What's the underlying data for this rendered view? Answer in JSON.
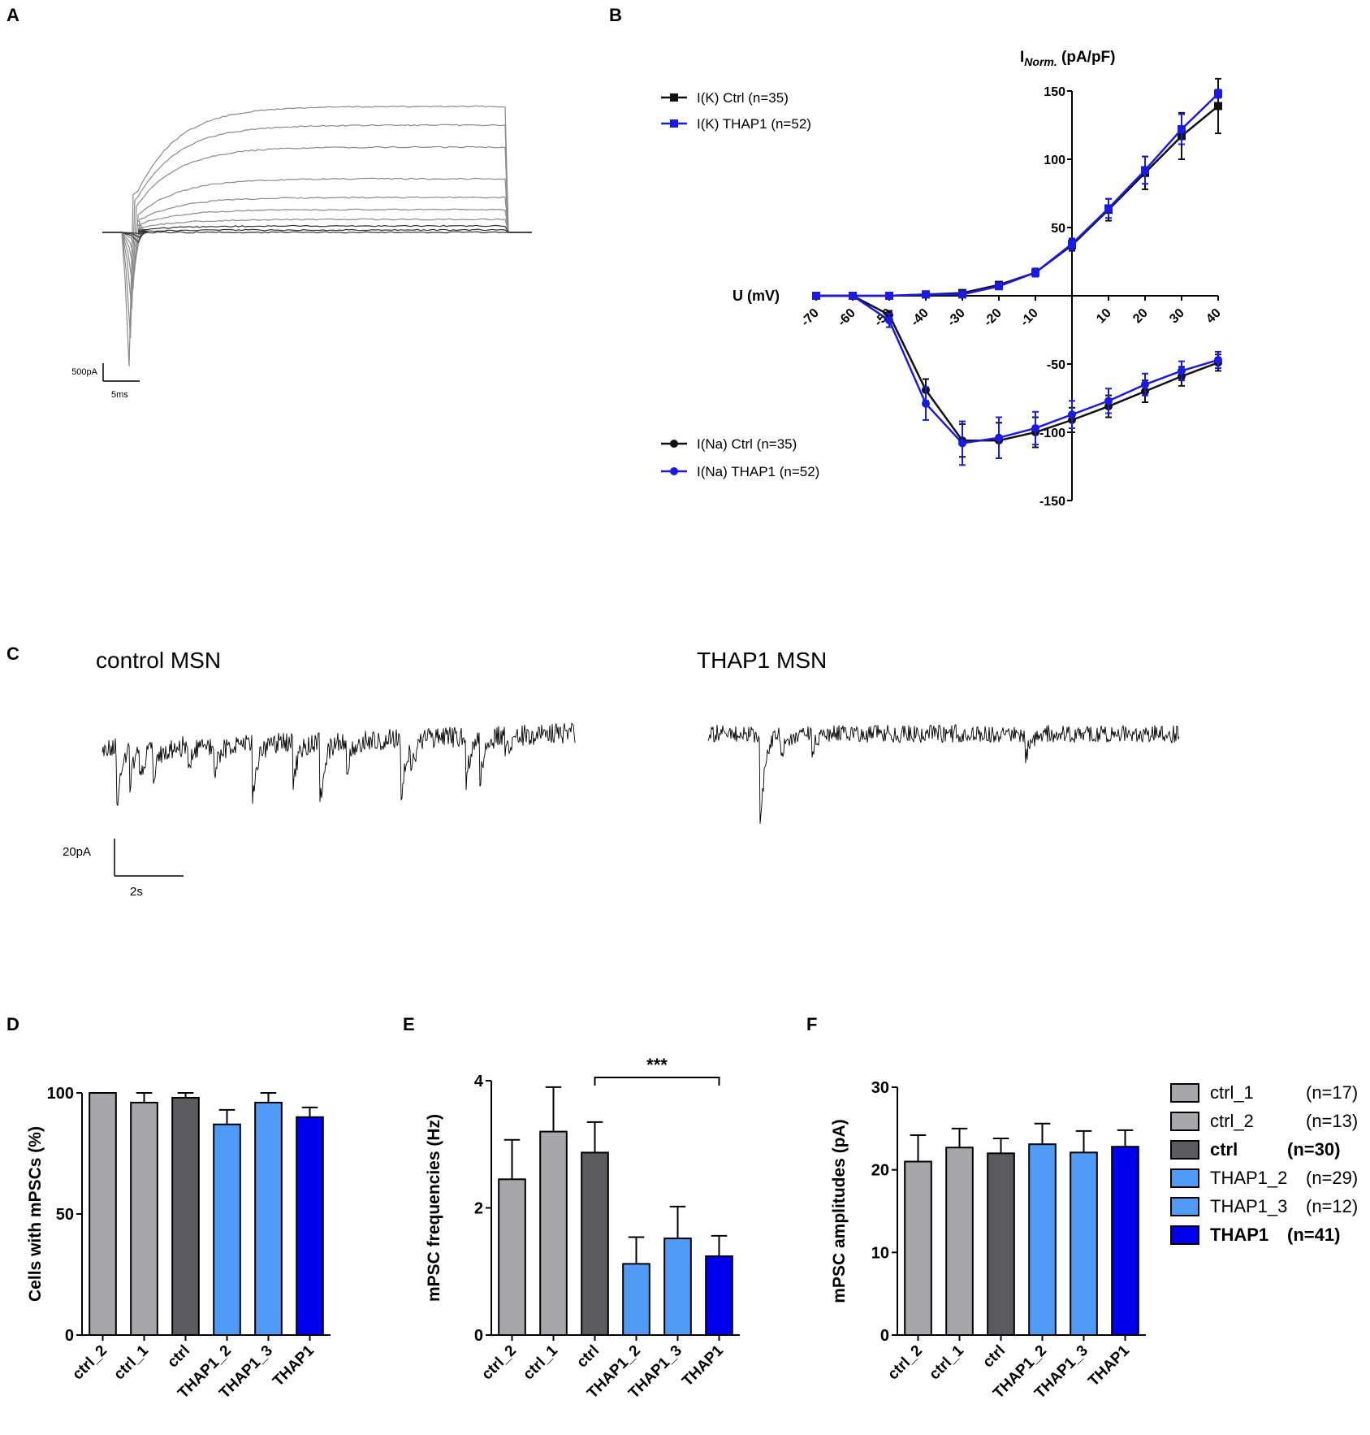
{
  "panels": {
    "A": {
      "label": "A",
      "scale_current": "500pA",
      "scale_time": "5ms"
    },
    "B": {
      "label": "B",
      "y_label_main": "I",
      "y_label_sub": "Norm.",
      "y_label_unit": " (pA/pF)",
      "x_label": "U (mV)"
    },
    "C": {
      "label": "C",
      "left_title": "control MSN",
      "right_title": "THAP1 MSN",
      "scale_current": "20pA",
      "scale_time": "2s"
    },
    "D": {
      "label": "D"
    },
    "E": {
      "label": "E",
      "significance": "***"
    },
    "F": {
      "label": "F"
    }
  },
  "colors": {
    "ctrl_light": "#a6a6ab",
    "ctrl_dark": "#5b5b5f",
    "thap_light": "#4f9bf5",
    "thap_dark": "#0000ee",
    "line_black": "#111111",
    "line_blue": "#1a1ae6"
  },
  "legend_F": [
    {
      "name": "ctrl_1",
      "n": "(n=17)",
      "bold": false,
      "color": "#a6a6ab"
    },
    {
      "name": "ctrl_2",
      "n": "(n=13)",
      "bold": false,
      "color": "#a6a6ab"
    },
    {
      "name": "ctrl",
      "n": "(n=30)",
      "bold": true,
      "color": "#5b5b5f"
    },
    {
      "name": "THAP1_2",
      "n": "(n=29)",
      "bold": false,
      "color": "#4f9bf5"
    },
    {
      "name": "THAP1_3",
      "n": "(n=12)",
      "bold": false,
      "color": "#4f9bf5"
    },
    {
      "name": "THAP1",
      "n": "(n=41)",
      "bold": true,
      "color": "#0000ee"
    }
  ],
  "chart_data": [
    {
      "id": "B",
      "type": "line",
      "xlabel": "U (mV)",
      "ylabel": "INorm. (pA/pF)",
      "xlim": [
        -70,
        40
      ],
      "ylim": [
        -150,
        150
      ],
      "x_ticks": [
        -70,
        -60,
        -50,
        -40,
        -30,
        -20,
        -10,
        0,
        10,
        20,
        30,
        40
      ],
      "y_ticks": [
        150,
        100,
        50,
        -50,
        -100,
        -150
      ],
      "series": [
        {
          "name": "I(K) Ctrl (n=35)",
          "marker": "square",
          "color": "#111111",
          "x": [
            -70,
            -60,
            -50,
            -40,
            -30,
            -20,
            -10,
            0,
            10,
            20,
            30,
            40
          ],
          "y": [
            0,
            0,
            0,
            1,
            2,
            8,
            17,
            37,
            63,
            90,
            117,
            139
          ],
          "err": [
            0,
            0,
            0,
            1,
            1,
            2,
            3,
            4,
            8,
            12,
            17,
            20
          ]
        },
        {
          "name": "I(K) THAP1 (n=52)",
          "marker": "square",
          "color": "#1a1ae6",
          "x": [
            -70,
            -60,
            -50,
            -40,
            -30,
            -20,
            -10,
            0,
            10,
            20,
            30,
            40
          ],
          "y": [
            0,
            0,
            0,
            1,
            1,
            7,
            17,
            38,
            64,
            92,
            122,
            148
          ],
          "err": [
            0,
            0,
            0,
            1,
            1,
            2,
            3,
            4,
            7,
            10,
            11,
            3
          ]
        },
        {
          "name": "I(Na) Ctrl (n=35)",
          "marker": "circle",
          "color": "#111111",
          "x": [
            -70,
            -60,
            -50,
            -40,
            -30,
            -20,
            -10,
            0,
            10,
            20,
            30,
            40
          ],
          "y": [
            0,
            0,
            -14,
            -69,
            -106,
            -106,
            -100,
            -91,
            -81,
            -70,
            -59,
            -49
          ],
          "err": [
            0,
            0,
            3,
            8,
            12,
            13,
            11,
            9,
            8,
            8,
            7,
            6
          ]
        },
        {
          "name": "I(Na) THAP1 (n=52)",
          "marker": "circle",
          "color": "#1a1ae6",
          "x": [
            -70,
            -60,
            -50,
            -40,
            -30,
            -20,
            -10,
            0,
            10,
            20,
            30,
            40
          ],
          "y": [
            0,
            0,
            -18,
            -79,
            -108,
            -104,
            -97,
            -87,
            -77,
            -65,
            -55,
            -47
          ],
          "err": [
            0,
            0,
            5,
            12,
            16,
            15,
            12,
            10,
            9,
            8,
            7,
            6
          ]
        }
      ]
    },
    {
      "id": "D",
      "type": "bar",
      "ylabel": "Cells with mPSCs (%)",
      "ylim": [
        0,
        100
      ],
      "y_ticks": [
        0,
        50,
        100
      ],
      "categories": [
        "ctrl_2",
        "ctrl_1",
        "ctrl",
        "THAP1_2",
        "THAP1_3",
        "THAP1"
      ],
      "values": [
        100,
        96,
        98,
        87,
        96,
        90
      ],
      "errors": [
        0,
        4,
        2,
        6,
        4,
        4
      ],
      "bar_colors": [
        "#a6a6ab",
        "#a6a6ab",
        "#5b5b5f",
        "#4f9bf5",
        "#4f9bf5",
        "#0000ee"
      ]
    },
    {
      "id": "E",
      "type": "bar",
      "ylabel": "mPSC frequencies (Hz)",
      "ylim": [
        0,
        4
      ],
      "y_ticks": [
        0,
        2,
        4
      ],
      "categories": [
        "ctrl_2",
        "ctrl_1",
        "ctrl",
        "THAP1_2",
        "THAP1_3",
        "THAP1"
      ],
      "values": [
        2.45,
        3.2,
        2.87,
        1.12,
        1.52,
        1.24
      ],
      "errors": [
        0.62,
        0.7,
        0.48,
        0.42,
        0.5,
        0.32
      ],
      "bar_colors": [
        "#a6a6ab",
        "#a6a6ab",
        "#5b5b5f",
        "#4f9bf5",
        "#4f9bf5",
        "#0000ee"
      ],
      "annotation": {
        "from": "ctrl",
        "to": "THAP1",
        "text": "***"
      }
    },
    {
      "id": "F",
      "type": "bar",
      "ylabel": "mPSC amplitudes (pA)",
      "ylim": [
        0,
        30
      ],
      "y_ticks": [
        0,
        10,
        20,
        30
      ],
      "categories": [
        "ctrl_2",
        "ctrl_1",
        "ctrl",
        "THAP1_2",
        "THAP1_3",
        "THAP1"
      ],
      "values": [
        21,
        22.7,
        22,
        23.1,
        22.1,
        22.8
      ],
      "errors": [
        3.2,
        2.3,
        1.8,
        2.5,
        2.6,
        2.0
      ],
      "bar_colors": [
        "#a6a6ab",
        "#a6a6ab",
        "#5b5b5f",
        "#4f9bf5",
        "#4f9bf5",
        "#0000ee"
      ]
    }
  ]
}
